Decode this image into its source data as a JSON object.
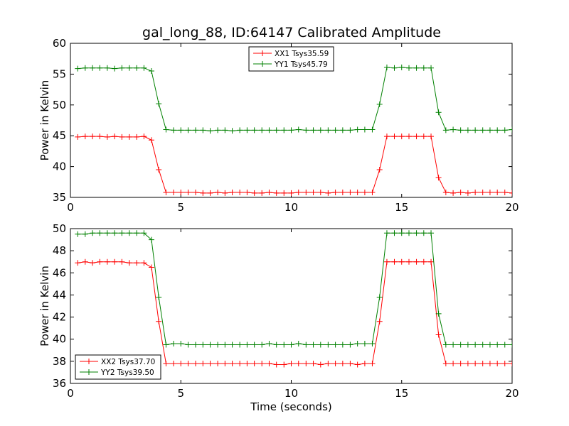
{
  "figure": {
    "title": "gal_long_88, ID:64147 Calibrated Amplitude"
  },
  "chart_data": [
    {
      "type": "line",
      "title": "gal_long_88, ID:64147 Calibrated Amplitude",
      "xlabel": "",
      "ylabel": "Power in Kelvin",
      "xlim": [
        0,
        20
      ],
      "ylim": [
        35,
        60
      ],
      "xticks": [
        "0",
        "5",
        "10",
        "15",
        "20"
      ],
      "yticks": [
        "35",
        "40",
        "45",
        "50",
        "55",
        "60"
      ],
      "xtick_values": [
        0,
        5,
        10,
        15,
        20
      ],
      "ytick_values": [
        35,
        40,
        45,
        50,
        55,
        60
      ],
      "grid": false,
      "legend_position": "top-center",
      "x": [
        0.33,
        0.67,
        1.0,
        1.33,
        1.67,
        2.0,
        2.33,
        2.67,
        3.0,
        3.33,
        3.67,
        4.0,
        4.33,
        4.67,
        5.0,
        5.33,
        5.67,
        6.0,
        6.33,
        6.67,
        7.0,
        7.33,
        7.67,
        8.0,
        8.33,
        8.67,
        9.0,
        9.33,
        9.67,
        10.0,
        10.33,
        10.67,
        11.0,
        11.33,
        11.67,
        12.0,
        12.33,
        12.67,
        13.0,
        13.33,
        13.67,
        14.0,
        14.33,
        14.67,
        15.0,
        15.33,
        15.67,
        16.0,
        16.33,
        16.67,
        17.0,
        17.33,
        17.67,
        18.0,
        18.33,
        18.67,
        19.0,
        19.33,
        19.67,
        20.0
      ],
      "series": [
        {
          "name": "XX1 Tsys35.59",
          "color": "#ff0000",
          "values": [
            44.8,
            44.9,
            44.9,
            44.9,
            44.8,
            44.9,
            44.8,
            44.8,
            44.8,
            44.9,
            44.3,
            39.5,
            35.8,
            35.8,
            35.8,
            35.8,
            35.8,
            35.7,
            35.7,
            35.8,
            35.7,
            35.8,
            35.8,
            35.8,
            35.7,
            35.7,
            35.8,
            35.7,
            35.7,
            35.7,
            35.8,
            35.8,
            35.8,
            35.8,
            35.7,
            35.8,
            35.8,
            35.8,
            35.8,
            35.8,
            35.8,
            39.5,
            44.9,
            44.9,
            44.9,
            44.9,
            44.9,
            44.9,
            44.9,
            38.2,
            35.8,
            35.7,
            35.8,
            35.7,
            35.8,
            35.8,
            35.8,
            35.8,
            35.8,
            35.7
          ]
        },
        {
          "name": "YY1 Tsys45.79",
          "color": "#008000",
          "values": [
            55.9,
            56.0,
            56.0,
            56.0,
            56.0,
            55.9,
            56.0,
            56.0,
            56.0,
            56.0,
            55.5,
            50.2,
            46.0,
            45.9,
            45.9,
            45.9,
            45.9,
            45.9,
            45.8,
            45.9,
            45.9,
            45.8,
            45.9,
            45.9,
            45.9,
            45.9,
            45.9,
            45.9,
            45.9,
            45.9,
            46.0,
            45.9,
            45.9,
            45.9,
            45.9,
            45.9,
            45.9,
            45.9,
            46.0,
            46.0,
            46.0,
            50.1,
            56.1,
            56.0,
            56.1,
            56.0,
            56.0,
            56.0,
            56.0,
            48.8,
            45.9,
            46.0,
            45.9,
            45.9,
            45.9,
            45.9,
            45.9,
            45.9,
            45.9,
            46.0
          ]
        }
      ]
    },
    {
      "type": "line",
      "title": "",
      "xlabel": "Time (seconds)",
      "ylabel": "Power in Kelvin",
      "xlim": [
        0,
        20
      ],
      "ylim": [
        36,
        50
      ],
      "xticks": [
        "0",
        "5",
        "10",
        "15",
        "20"
      ],
      "yticks": [
        "36",
        "38",
        "40",
        "42",
        "44",
        "46",
        "48",
        "50"
      ],
      "xtick_values": [
        0,
        5,
        10,
        15,
        20
      ],
      "ytick_values": [
        36,
        38,
        40,
        42,
        44,
        46,
        48,
        50
      ],
      "grid": false,
      "legend_position": "bottom-left",
      "x": [
        0.33,
        0.67,
        1.0,
        1.33,
        1.67,
        2.0,
        2.33,
        2.67,
        3.0,
        3.33,
        3.67,
        4.0,
        4.33,
        4.67,
        5.0,
        5.33,
        5.67,
        6.0,
        6.33,
        6.67,
        7.0,
        7.33,
        7.67,
        8.0,
        8.33,
        8.67,
        9.0,
        9.33,
        9.67,
        10.0,
        10.33,
        10.67,
        11.0,
        11.33,
        11.67,
        12.0,
        12.33,
        12.67,
        13.0,
        13.33,
        13.67,
        14.0,
        14.33,
        14.67,
        15.0,
        15.33,
        15.67,
        16.0,
        16.33,
        16.67,
        17.0,
        17.33,
        17.67,
        18.0,
        18.33,
        18.67,
        19.0,
        19.33,
        19.67,
        20.0
      ],
      "series": [
        {
          "name": "XX2 Tsys37.70",
          "color": "#ff0000",
          "values": [
            46.9,
            47.0,
            46.9,
            47.0,
            47.0,
            47.0,
            47.0,
            46.9,
            46.9,
            46.9,
            46.5,
            41.6,
            37.8,
            37.8,
            37.8,
            37.8,
            37.8,
            37.8,
            37.8,
            37.8,
            37.8,
            37.8,
            37.8,
            37.8,
            37.8,
            37.8,
            37.8,
            37.7,
            37.7,
            37.8,
            37.8,
            37.8,
            37.8,
            37.7,
            37.8,
            37.8,
            37.8,
            37.8,
            37.7,
            37.8,
            37.8,
            41.6,
            47.0,
            47.0,
            47.0,
            47.0,
            47.0,
            47.0,
            47.0,
            40.4,
            37.8,
            37.8,
            37.8,
            37.8,
            37.8,
            37.8,
            37.8,
            37.8,
            37.8,
            37.8
          ]
        },
        {
          "name": "YY2 Tsys39.50",
          "color": "#008000",
          "values": [
            49.5,
            49.5,
            49.6,
            49.6,
            49.6,
            49.6,
            49.6,
            49.6,
            49.6,
            49.6,
            49.0,
            43.8,
            39.5,
            39.6,
            39.6,
            39.5,
            39.5,
            39.5,
            39.5,
            39.5,
            39.5,
            39.5,
            39.5,
            39.5,
            39.5,
            39.5,
            39.6,
            39.5,
            39.5,
            39.5,
            39.6,
            39.5,
            39.5,
            39.5,
            39.5,
            39.5,
            39.5,
            39.5,
            39.6,
            39.6,
            39.6,
            43.8,
            49.6,
            49.6,
            49.6,
            49.6,
            49.6,
            49.6,
            49.6,
            42.3,
            39.5,
            39.5,
            39.5,
            39.5,
            39.5,
            39.5,
            39.5,
            39.5,
            39.5,
            39.5
          ]
        }
      ]
    }
  ]
}
